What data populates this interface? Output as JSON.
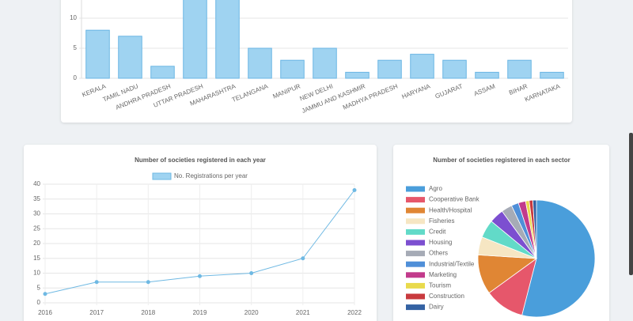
{
  "chart_data": [
    {
      "type": "bar",
      "categories": [
        "KERALA",
        "TAMIL NADU",
        "ANDHRA PRADESH",
        "UTTAR PRADESH",
        "MAHARASHTRA",
        "TELANGANA",
        "MANIPUR",
        "NEW DELHI",
        "JAMMU AND KASHMIR",
        "MADHYA PRADESH",
        "HARYANA",
        "GUJARAT",
        "ASSAM",
        "BIHAR",
        "KARNATAKA"
      ],
      "values": [
        8,
        7,
        2,
        14,
        14,
        5,
        3,
        5,
        1,
        3,
        4,
        3,
        1,
        3,
        1
      ],
      "color": "#9fd3f1",
      "ylim": [
        0,
        15
      ],
      "yticks": [
        0,
        5,
        10
      ],
      "grid": true
    },
    {
      "type": "line",
      "title": "Number of societies registered in each year",
      "categories": [
        "2016",
        "2017",
        "2018",
        "2019",
        "2020",
        "2021",
        "2022"
      ],
      "series": [
        {
          "name": "No. Registrations per year",
          "color": "#6fb9e3",
          "values": [
            3,
            7,
            7,
            9,
            10,
            15,
            38
          ]
        }
      ],
      "ylim": [
        0,
        40
      ],
      "yticks": [
        0,
        5,
        10,
        15,
        20,
        25,
        30,
        35,
        40
      ],
      "grid": true,
      "legend": "top"
    },
    {
      "type": "pie",
      "title": "Number of societies registered in each sector",
      "categories": [
        "Agro",
        "Cooperative Bank",
        "Health/Hospital",
        "Fisheries",
        "Credit",
        "Housing",
        "Others",
        "Industrial/Textile",
        "Marketing",
        "Tourism",
        "Construction",
        "Dairy"
      ],
      "values": [
        54,
        11,
        11,
        5,
        5,
        4,
        3,
        2,
        2,
        1,
        1,
        1
      ],
      "colors": [
        "#4a9edb",
        "#e6576b",
        "#e08634",
        "#f6e6c3",
        "#62dac8",
        "#7c4fd0",
        "#a6abb6",
        "#4f8fd8",
        "#c23b8c",
        "#e9da4c",
        "#c83a3e",
        "#3462a3"
      ],
      "legend": "left"
    }
  ]
}
